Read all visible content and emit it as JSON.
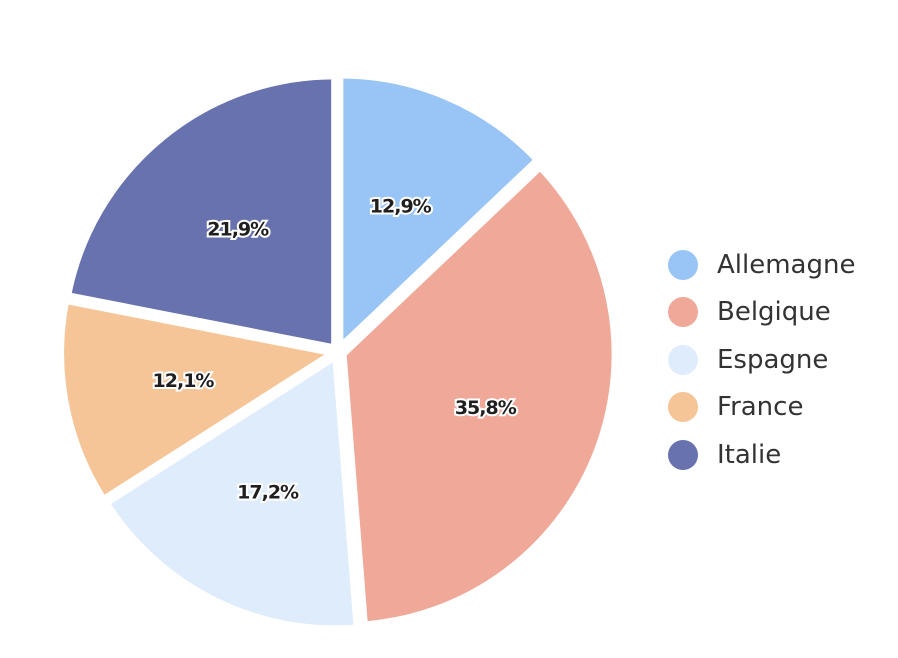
{
  "chart_data": {
    "type": "pie",
    "title": "",
    "legend_position": "right",
    "categories": [
      "Allemagne",
      "Belgique",
      "Espagne",
      "France",
      "Italie"
    ],
    "values": [
      12.9,
      35.8,
      17.2,
      12.1,
      21.9
    ],
    "value_labels": [
      "12,9%",
      "35,8%",
      "17,2%",
      "12,1%",
      "21,9%"
    ],
    "colors": [
      "#99c5f6",
      "#f0a898",
      "#dfecfc",
      "#f5c597",
      "#6772ae"
    ]
  }
}
